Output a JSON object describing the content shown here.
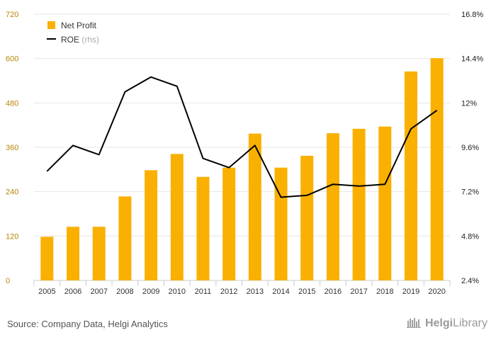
{
  "chart_data": {
    "type": "bar",
    "x": [
      "2005",
      "2006",
      "2007",
      "2008",
      "2009",
      "2010",
      "2011",
      "2012",
      "2013",
      "2014",
      "2015",
      "2016",
      "2017",
      "2018",
      "2019",
      "2020"
    ],
    "series": [
      {
        "name": "Net Profit",
        "type": "bar",
        "axis": "left",
        "color": "#f9b000",
        "values": [
          118,
          145,
          145,
          227,
          298,
          342,
          280,
          305,
          397,
          305,
          337,
          398,
          410,
          416,
          565,
          601
        ]
      },
      {
        "name": "ROE",
        "name_suffix": "(rhs)",
        "type": "line",
        "axis": "right",
        "color": "#000000",
        "values": [
          8.3,
          9.7,
          9.2,
          12.6,
          13.4,
          12.9,
          9.0,
          8.5,
          9.7,
          6.9,
          7.0,
          7.6,
          7.5,
          7.6,
          10.6,
          11.6
        ]
      }
    ],
    "y_left": {
      "ylim": [
        0,
        720
      ],
      "ticks": [
        "0",
        "120",
        "240",
        "360",
        "480",
        "600",
        "720"
      ]
    },
    "y_right": {
      "ylim": [
        2.4,
        16.8
      ],
      "ticks": [
        "2.4%",
        "4.8%",
        "7.2%",
        "9.6%",
        "12%",
        "14.4%",
        "16.8%"
      ]
    },
    "grid": true,
    "legend": "top-left"
  },
  "footer": {
    "source": "Source: Company Data, Helgi Analytics",
    "brand_bold": "Helgi",
    "brand_light": "Library"
  }
}
